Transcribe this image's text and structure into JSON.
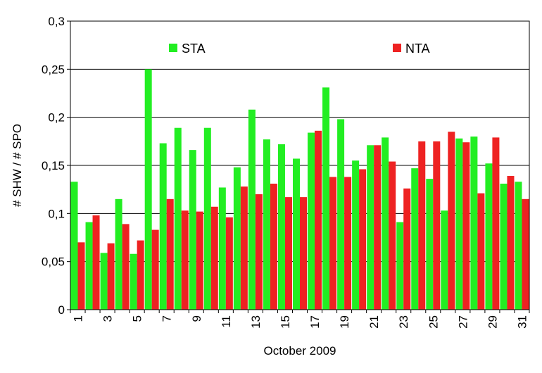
{
  "chart_data": {
    "type": "bar",
    "xlabel": "October 2009",
    "ylabel": "# SHW / # SPO",
    "ylim": [
      0,
      0.3
    ],
    "yticks": [
      0,
      0.05,
      0.1,
      0.15,
      0.2,
      0.25,
      0.3
    ],
    "ytick_labels": [
      "0",
      "0,05",
      "0,1",
      "0,15",
      "0,2",
      "0,25",
      "0,3"
    ],
    "categories": [
      1,
      2,
      3,
      4,
      5,
      6,
      7,
      8,
      9,
      10,
      11,
      12,
      13,
      14,
      15,
      16,
      17,
      18,
      19,
      20,
      21,
      22,
      23,
      24,
      25,
      26,
      27,
      28,
      29,
      30,
      31
    ],
    "xtick_labels": [
      "1",
      "3",
      "5",
      "7",
      "9",
      "11",
      "13",
      "15",
      "17",
      "19",
      "21",
      "23",
      "25",
      "27",
      "29",
      "31"
    ],
    "grid": "horizontal",
    "legend_placement": "top",
    "series": [
      {
        "name": "STA",
        "color": "#22ee22",
        "values": [
          0.133,
          0.091,
          0.059,
          0.115,
          0.058,
          0.25,
          0.173,
          0.189,
          0.166,
          0.189,
          0.127,
          0.148,
          0.208,
          0.177,
          0.172,
          0.157,
          0.184,
          0.231,
          0.198,
          0.155,
          0.171,
          0.179,
          0.091,
          0.147,
          0.136,
          0.103,
          0.178,
          0.18,
          0.152,
          0.131,
          0.133
        ]
      },
      {
        "name": "NTA",
        "color": "#ee2222",
        "values": [
          0.07,
          0.098,
          0.069,
          0.089,
          0.072,
          0.083,
          0.115,
          0.103,
          0.102,
          0.107,
          0.096,
          0.128,
          0.12,
          0.131,
          0.117,
          0.117,
          0.186,
          0.138,
          0.138,
          0.146,
          0.171,
          0.154,
          0.126,
          0.175,
          0.175,
          0.185,
          0.174,
          0.121,
          0.179,
          0.139,
          0.115
        ]
      }
    ]
  }
}
